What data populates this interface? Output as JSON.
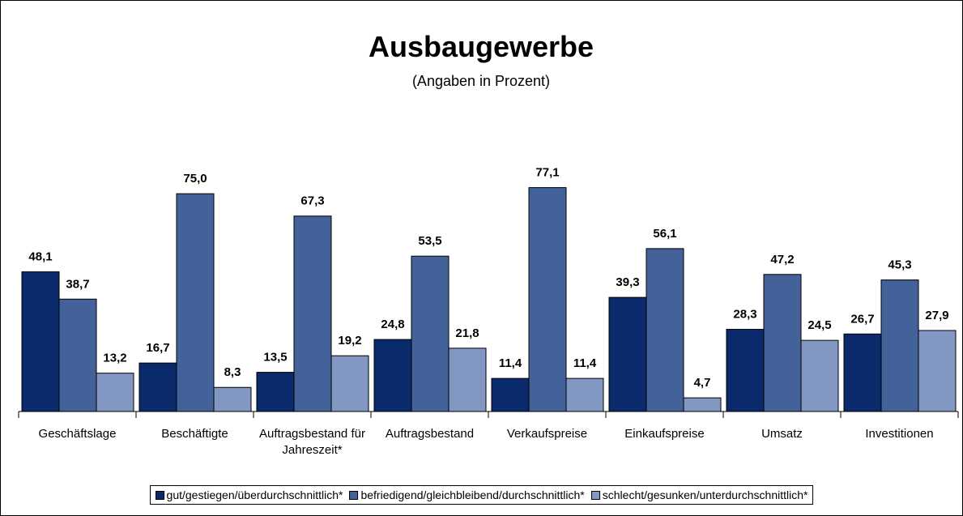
{
  "chart_data": {
    "type": "bar",
    "title": "Ausbaugewerbe",
    "subtitle": "(Angaben in Prozent)",
    "categories": [
      "Geschäftslage",
      "Beschäftigte",
      "Auftragsbestand für Jahreszeit*",
      "Auftragsbestand",
      "Verkaufspreise",
      "Einkaufspreise",
      "Umsatz",
      "Investitionen"
    ],
    "series": [
      {
        "name": "gut/gestiegen/überdurchschnittlich*",
        "color": "#0a2a6c",
        "values": [
          48.1,
          16.7,
          13.5,
          24.8,
          11.4,
          39.3,
          28.3,
          26.7
        ],
        "value_labels": [
          "48,1",
          "16,7",
          "13,5",
          "24,8",
          "11,4",
          "39,3",
          "28,3",
          "26,7"
        ]
      },
      {
        "name": "befriedigend/gleichbleibend/durchschnittlich*",
        "color": "#43629a",
        "values": [
          38.7,
          75.0,
          67.3,
          53.5,
          77.1,
          56.1,
          47.2,
          45.3
        ],
        "value_labels": [
          "38,7",
          "75,0",
          "67,3",
          "53,5",
          "77,1",
          "56,1",
          "47,2",
          "45,3"
        ]
      },
      {
        "name": "schlecht/gesunken/unterdurchschnittlich*",
        "color": "#8297c2",
        "values": [
          13.2,
          8.3,
          19.2,
          21.8,
          11.4,
          4.7,
          24.5,
          27.9
        ],
        "value_labels": [
          "13,2",
          "8,3",
          "19,2",
          "21,8",
          "11,4",
          "4,7",
          "24,5",
          "27,9"
        ]
      }
    ]
  }
}
